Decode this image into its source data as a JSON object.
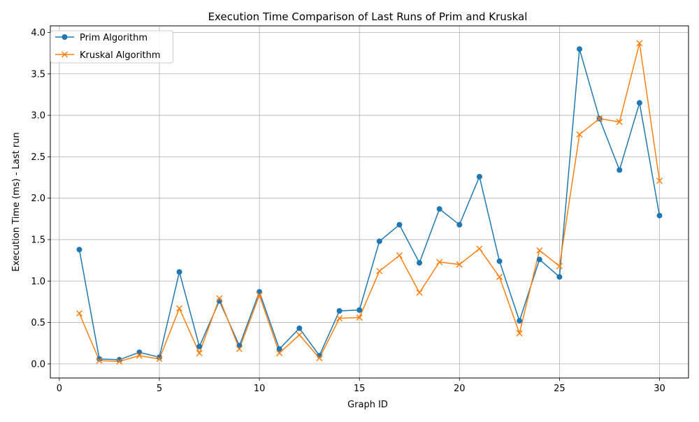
{
  "chart_data": {
    "type": "line",
    "title": "Execution Time Comparison of Last Runs of Prim and Kruskal",
    "xlabel": "Graph ID",
    "ylabel": "Execution Time (ms) - Last run",
    "xlim": [
      -0.45,
      31.45
    ],
    "ylim": [
      -0.17,
      4.08
    ],
    "xticks": [
      0,
      5,
      10,
      15,
      20,
      25,
      30
    ],
    "yticks": [
      0.0,
      0.5,
      1.0,
      1.5,
      2.0,
      2.5,
      3.0,
      3.5,
      4.0
    ],
    "grid": true,
    "legend_position": "top-left",
    "x": [
      1,
      2,
      3,
      4,
      5,
      6,
      7,
      8,
      9,
      10,
      11,
      12,
      13,
      14,
      15,
      16,
      17,
      18,
      19,
      20,
      21,
      22,
      23,
      24,
      25,
      26,
      27,
      28,
      29,
      30
    ],
    "series": [
      {
        "name": "Prim Algorithm",
        "color": "#1f77b4",
        "marker": "circle",
        "values": [
          1.38,
          0.06,
          0.05,
          0.14,
          0.08,
          1.11,
          0.21,
          0.76,
          0.22,
          0.87,
          0.18,
          0.43,
          0.1,
          0.64,
          0.65,
          1.48,
          1.68,
          1.22,
          1.87,
          1.68,
          2.26,
          1.24,
          0.52,
          1.26,
          1.05,
          3.8,
          2.96,
          2.34,
          3.15,
          1.79
        ]
      },
      {
        "name": "Kruskal Algorithm",
        "color": "#ff7f0e",
        "marker": "x",
        "values": [
          0.61,
          0.04,
          0.03,
          0.1,
          0.06,
          0.67,
          0.13,
          0.79,
          0.18,
          0.83,
          0.13,
          0.35,
          0.07,
          0.55,
          0.56,
          1.12,
          1.31,
          0.86,
          1.23,
          1.2,
          1.39,
          1.05,
          0.37,
          1.37,
          1.18,
          2.77,
          2.96,
          2.92,
          3.87,
          2.21
        ]
      }
    ]
  }
}
